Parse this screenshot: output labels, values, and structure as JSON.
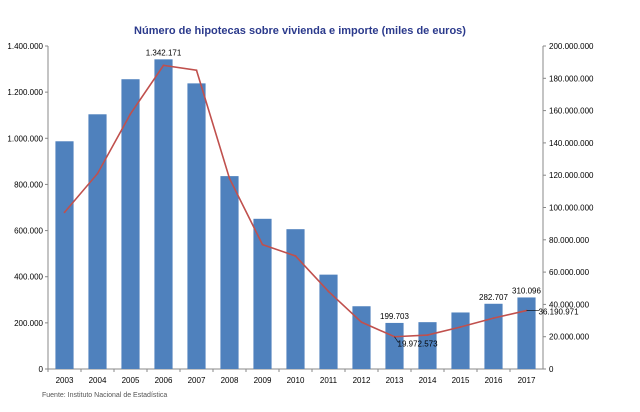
{
  "chart_data": {
    "type": "bar",
    "title": "Número de hipotecas sobre vivienda e importe (miles de euros)",
    "categories": [
      "2003",
      "2004",
      "2005",
      "2006",
      "2007",
      "2008",
      "2009",
      "2010",
      "2011",
      "2012",
      "2013",
      "2014",
      "2015",
      "2016",
      "2017"
    ],
    "series": [
      {
        "type": "bar",
        "axis": "left",
        "color": "#4f81bd",
        "values": [
          987000,
          1104000,
          1256000,
          1342171,
          1238000,
          836000,
          651000,
          606000,
          409000,
          272000,
          199703,
          203000,
          245000,
          282707,
          310096
        ]
      },
      {
        "type": "line",
        "axis": "right",
        "color": "#c0504d",
        "values": [
          97000000,
          121000000,
          158000000,
          188000000,
          185000000,
          118000000,
          77000000,
          70000000,
          48000000,
          29000000,
          19972573,
          21000000,
          26000000,
          31500000,
          36190971
        ]
      }
    ],
    "y_left": {
      "ylim": [
        0,
        1400000
      ],
      "ticks": [
        "0",
        "200.000",
        "400.000",
        "600.000",
        "800.000",
        "1.000.000",
        "1.200.000",
        "1.400.000"
      ]
    },
    "y_right": {
      "ylim": [
        0,
        200000000
      ],
      "ticks": [
        "0",
        "20.000.000",
        "40.000.000",
        "60.000.000",
        "80.000.000",
        "100.000.000",
        "120.000.000",
        "140.000.000",
        "160.000.000",
        "180.000.000",
        "200.000.000"
      ]
    },
    "data_labels": [
      {
        "series": 0,
        "index": 3,
        "text": "1.342.171"
      },
      {
        "series": 0,
        "index": 10,
        "text": "199.703"
      },
      {
        "series": 0,
        "index": 13,
        "text": "282.707"
      },
      {
        "series": 0,
        "index": 14,
        "text": "310.096"
      },
      {
        "series": 1,
        "index": 10,
        "text": "19.972.573"
      },
      {
        "series": 1,
        "index": 14,
        "text": "36.190.971"
      }
    ],
    "grid": false,
    "legend": "none"
  },
  "source": "Fuente:  Instituto Nacional de Estadística"
}
